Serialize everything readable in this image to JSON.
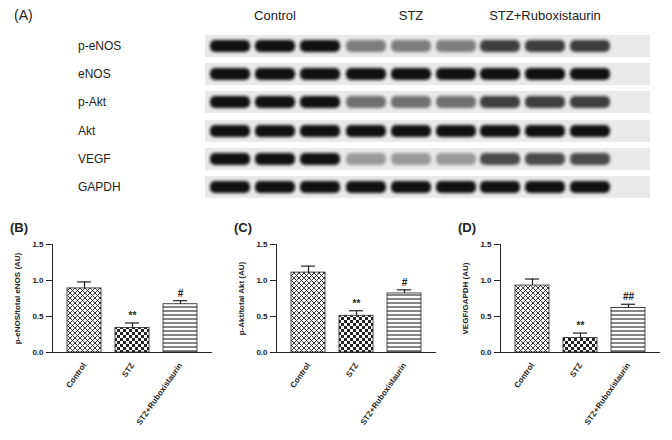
{
  "blot": {
    "panel_label": "(A)",
    "groups": [
      "Control",
      "STZ",
      "STZ+Ruboxistaurin"
    ],
    "rows": [
      "p-eNOS",
      "eNOS",
      "p-Akt",
      "Akt",
      "VEGF",
      "GAPDH"
    ]
  },
  "chart_data": [
    {
      "type": "bar",
      "panel_label": "(B)",
      "y_label": "p-eNOS/total eNOS (AU)",
      "categories": [
        "Control",
        "STZ",
        "STZ+Ruboxistaurin"
      ],
      "values": [
        0.89,
        0.34,
        0.67
      ],
      "errors": [
        0.09,
        0.07,
        0.05
      ],
      "significance": [
        null,
        "**",
        "#"
      ],
      "color": "#222222",
      "ylim": [
        0,
        1.5
      ],
      "yticks": [
        {
          "value": 0,
          "label": "0.0"
        },
        {
          "value": 0.5,
          "label": "0.5"
        },
        {
          "value": 1,
          "label": "1.0"
        },
        {
          "value": 1.5,
          "label": "1.5"
        }
      ]
    },
    {
      "type": "bar",
      "panel_label": "(C)",
      "y_label": "p-Akt/total Akt (AU)",
      "categories": [
        "Control",
        "STZ",
        "STZ+Ruboxistaurin"
      ],
      "values": [
        1.11,
        0.51,
        0.82
      ],
      "errors": [
        0.09,
        0.07,
        0.05
      ],
      "significance": [
        null,
        "**",
        "#"
      ],
      "color": "#222222",
      "ylim": [
        0,
        1.5
      ],
      "yticks": [
        {
          "value": 0,
          "label": "0.0"
        },
        {
          "value": 0.5,
          "label": "0.5"
        },
        {
          "value": 1,
          "label": "1.0"
        },
        {
          "value": 1.5,
          "label": "1.5"
        }
      ]
    },
    {
      "type": "bar",
      "panel_label": "(D)",
      "y_label": "VEGF/GAPDH (AU)",
      "categories": [
        "Control",
        "STZ",
        "STZ+Ruboxistaurin"
      ],
      "values": [
        0.93,
        0.2,
        0.62
      ],
      "errors": [
        0.09,
        0.07,
        0.05
      ],
      "significance": [
        null,
        "**",
        "##"
      ],
      "color": "#222222",
      "ylim": [
        0,
        1.5
      ],
      "yticks": [
        {
          "value": 0,
          "label": "0.0"
        },
        {
          "value": 0.5,
          "label": "0.5"
        },
        {
          "value": 1,
          "label": "1.0"
        },
        {
          "value": 1.5,
          "label": "1.5"
        }
      ]
    }
  ]
}
